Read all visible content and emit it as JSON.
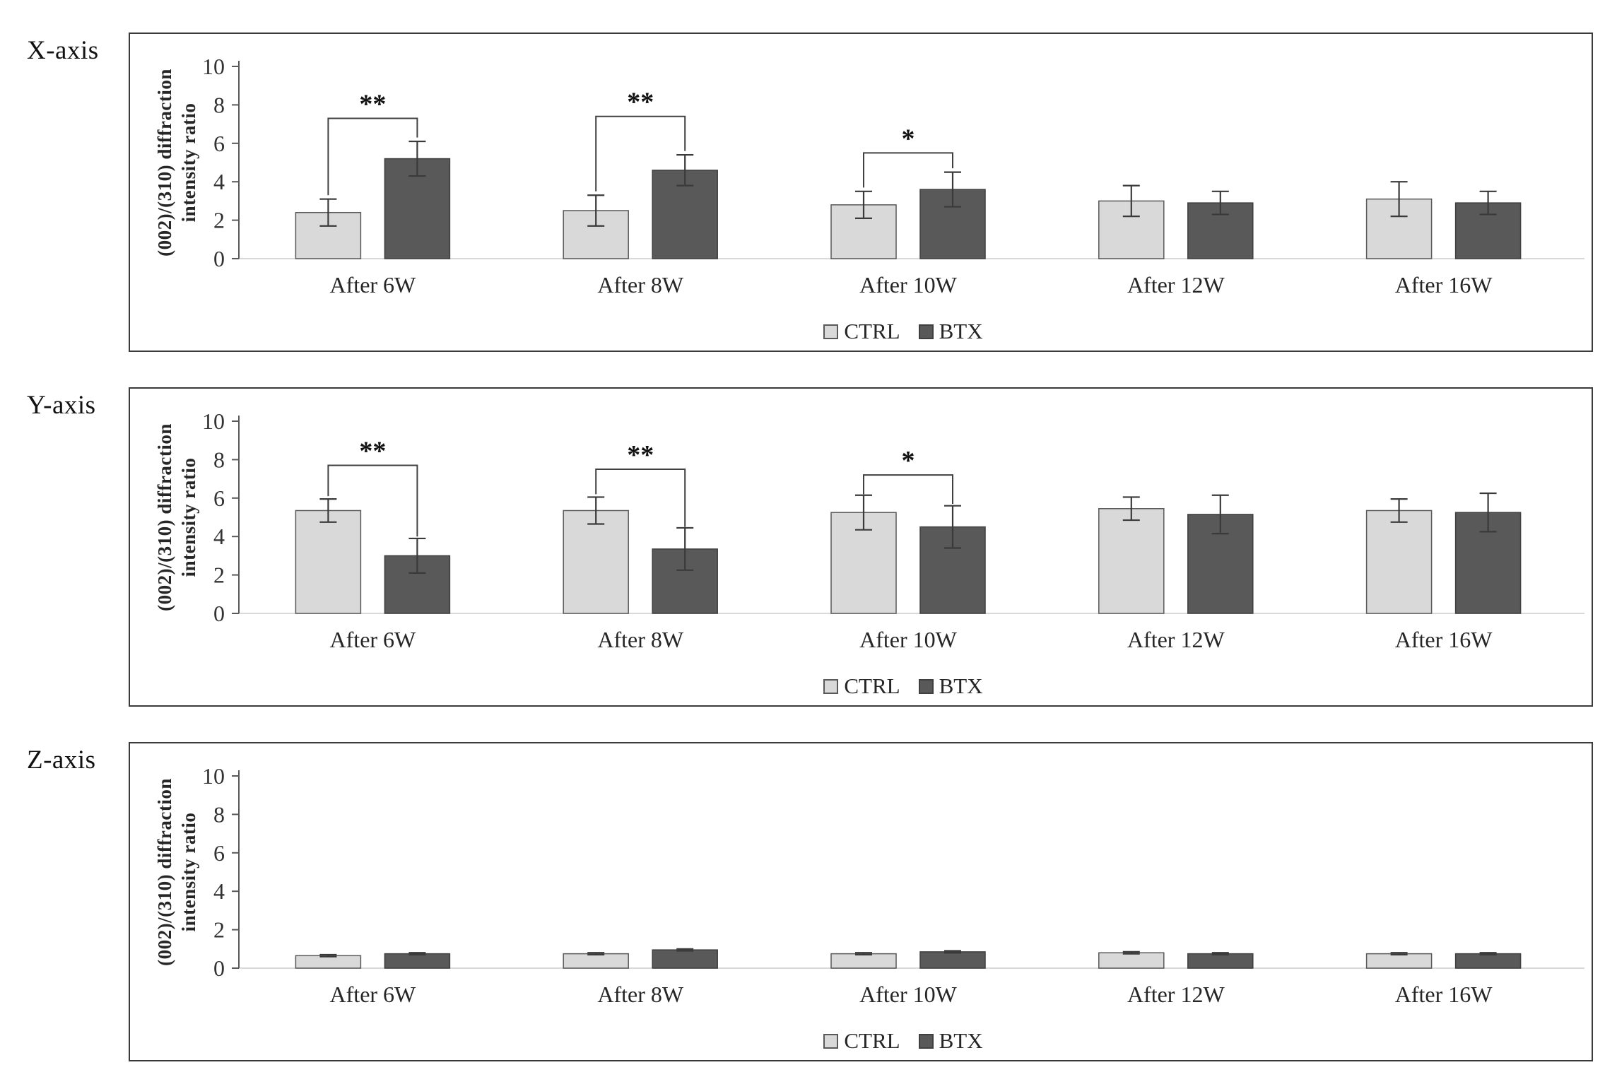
{
  "figure": {
    "legend_position": "bottom",
    "axis_color": "#595959",
    "baseline_color": "#d9d9d9",
    "error_bar_color": "#3a3a3a",
    "bracket_color": "#404040"
  },
  "chart_data": [
    {
      "type": "bar",
      "panel_label": "X-axis",
      "ylabel": "(002)/(310) diffraction intensity ratio",
      "ylabel_lines": [
        "(002)/(310) diffraction",
        "intensity ratio"
      ],
      "ylim": [
        0,
        10
      ],
      "yticks": [
        0,
        2,
        4,
        6,
        8,
        10
      ],
      "grid": false,
      "categories": [
        "After 6W",
        "After 8W",
        "After 10W",
        "After 12W",
        "After 16W"
      ],
      "series": [
        {
          "name": "CTRL",
          "color": "#d9d9d9",
          "border": "#595959",
          "values": [
            2.4,
            2.5,
            2.8,
            3.0,
            3.1
          ],
          "errors": [
            0.7,
            0.8,
            0.7,
            0.8,
            0.9
          ]
        },
        {
          "name": "BTX",
          "color": "#595959",
          "border": "#3f3f3f",
          "values": [
            5.2,
            4.6,
            3.6,
            2.9,
            2.9
          ],
          "errors": [
            0.9,
            0.8,
            0.9,
            0.6,
            0.6
          ]
        }
      ],
      "annotations": [
        {
          "group": 0,
          "label": "**",
          "left_y": 3.3,
          "right_y": 6.3,
          "bar_y": 7.3
        },
        {
          "group": 1,
          "label": "**",
          "left_y": 3.5,
          "right_y": 5.6,
          "bar_y": 7.4
        },
        {
          "group": 2,
          "label": "*",
          "left_y": 3.7,
          "right_y": 4.7,
          "bar_y": 5.5
        }
      ]
    },
    {
      "type": "bar",
      "panel_label": "Y-axis",
      "ylabel": "(002)/(310) diffraction intensity ratio",
      "ylabel_lines": [
        "(002)/(310) diffraction",
        "intensity ratio"
      ],
      "ylim": [
        0,
        10
      ],
      "yticks": [
        0,
        2,
        4,
        6,
        8,
        10
      ],
      "grid": false,
      "categories": [
        "After 6W",
        "After 8W",
        "After 10W",
        "After 12W",
        "After 16W"
      ],
      "series": [
        {
          "name": "CTRL",
          "color": "#d9d9d9",
          "border": "#595959",
          "values": [
            5.35,
            5.35,
            5.25,
            5.45,
            5.35
          ],
          "errors": [
            0.6,
            0.7,
            0.9,
            0.6,
            0.6
          ]
        },
        {
          "name": "BTX",
          "color": "#595959",
          "border": "#3f3f3f",
          "values": [
            3.0,
            3.35,
            4.5,
            5.15,
            5.25
          ],
          "errors": [
            0.9,
            1.1,
            1.1,
            1.0,
            1.0
          ]
        }
      ],
      "annotations": [
        {
          "group": 0,
          "label": "**",
          "left_y": 6.1,
          "right_y": 4.0,
          "bar_y": 7.7
        },
        {
          "group": 1,
          "label": "**",
          "left_y": 6.2,
          "right_y": 4.5,
          "bar_y": 7.5
        },
        {
          "group": 2,
          "label": "*",
          "left_y": 6.2,
          "right_y": 5.7,
          "bar_y": 7.2
        }
      ]
    },
    {
      "type": "bar",
      "panel_label": "Z-axis",
      "ylabel": "(002)/(310) diffraction intensity ratio",
      "ylabel_lines": [
        "(002)/(310) diffraction",
        "intensity ratio"
      ],
      "ylim": [
        0,
        10
      ],
      "yticks": [
        0,
        2,
        4,
        6,
        8,
        10
      ],
      "grid": false,
      "categories": [
        "After 6W",
        "After 8W",
        "After 10W",
        "After 12W",
        "After 16W"
      ],
      "series": [
        {
          "name": "CTRL",
          "color": "#d9d9d9",
          "border": "#595959",
          "values": [
            0.65,
            0.75,
            0.75,
            0.8,
            0.75
          ],
          "errors": [
            0.05,
            0.05,
            0.05,
            0.05,
            0.05
          ]
        },
        {
          "name": "BTX",
          "color": "#595959",
          "border": "#3f3f3f",
          "values": [
            0.75,
            0.95,
            0.85,
            0.75,
            0.75
          ],
          "errors": [
            0.05,
            0.05,
            0.05,
            0.05,
            0.05
          ]
        }
      ],
      "annotations": []
    }
  ]
}
